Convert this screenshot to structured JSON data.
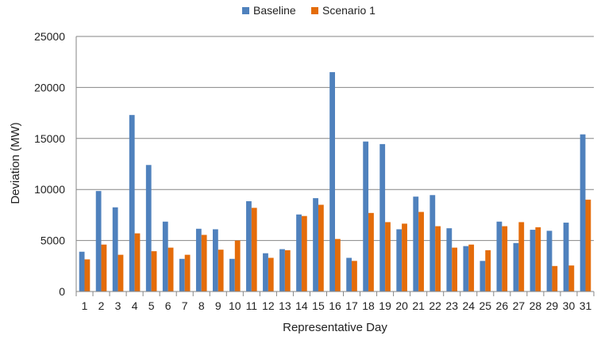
{
  "chart_data": {
    "type": "bar",
    "title": "",
    "xlabel": "Representative Day",
    "ylabel": "Deviation (MW)",
    "ylim": [
      0,
      25000
    ],
    "yticks": [
      0,
      5000,
      10000,
      15000,
      20000,
      25000
    ],
    "grid": true,
    "legend_position": "top-center",
    "categories": [
      "1",
      "2",
      "3",
      "4",
      "5",
      "6",
      "7",
      "8",
      "9",
      "10",
      "11",
      "12",
      "13",
      "14",
      "15",
      "16",
      "17",
      "18",
      "19",
      "20",
      "21",
      "22",
      "23",
      "24",
      "25",
      "26",
      "27",
      "28",
      "29",
      "30",
      "31"
    ],
    "series": [
      {
        "name": "Baseline",
        "color": "#4f81bd",
        "values": [
          3900,
          9850,
          8250,
          17300,
          12400,
          6850,
          3200,
          6150,
          6100,
          3200,
          8850,
          3750,
          4150,
          7550,
          9150,
          21500,
          3300,
          14700,
          14450,
          6100,
          9300,
          9450,
          6200,
          4450,
          3000,
          6850,
          4750,
          6050,
          5950,
          6750,
          15400
        ]
      },
      {
        "name": "Scenario 1",
        "color": "#e46c0a",
        "values": [
          3150,
          4600,
          3600,
          5700,
          3950,
          4300,
          3600,
          5550,
          4100,
          5000,
          8200,
          3300,
          4050,
          7400,
          8500,
          5150,
          3000,
          7700,
          6800,
          6650,
          7800,
          6400,
          4300,
          4600,
          4050,
          6400,
          6800,
          6300,
          2500,
          2550,
          9000
        ]
      }
    ]
  }
}
